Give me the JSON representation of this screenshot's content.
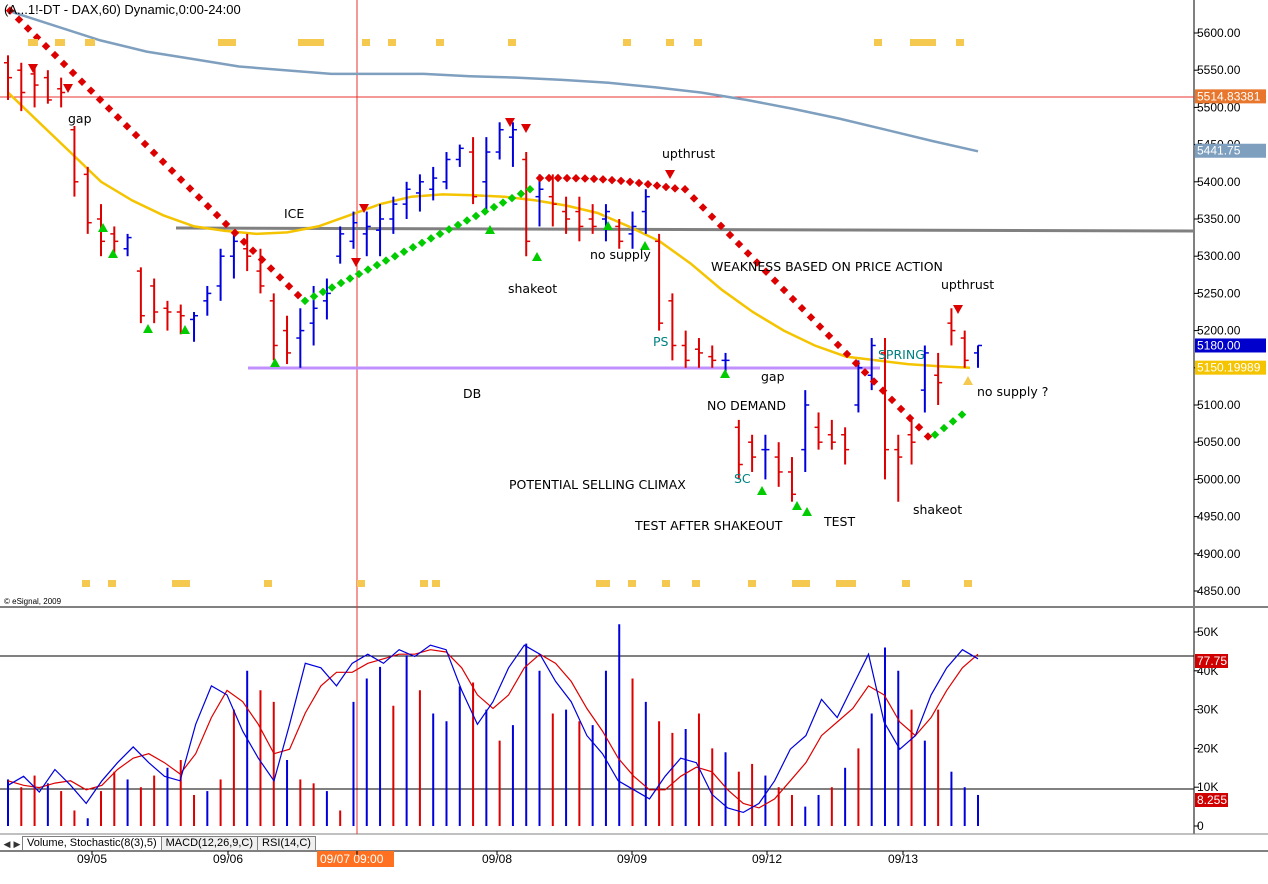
{
  "window": {
    "title": "(A...1!-DT - DAX,60) Dynamic,0:00-24:00",
    "copyright": "© eSignal, 2009"
  },
  "price_axis": {
    "ticks": [
      "5600.00",
      "5550.00",
      "5500.00",
      "5450.00",
      "5400.00",
      "5350.00",
      "5300.00",
      "5250.00",
      "5200.00",
      "5150.00",
      "5100.00",
      "5050.00",
      "5000.00",
      "4950.00",
      "4900.00",
      "4850.00"
    ],
    "badges": [
      {
        "text": "5514.83381",
        "color": "#e8762c"
      },
      {
        "text": "5441.75",
        "color": "#7f9fbf"
      },
      {
        "text": "5180.00",
        "color": "#0000cc"
      },
      {
        "text": "5150.19989",
        "color": "#f5c400"
      }
    ]
  },
  "lower_axis": {
    "ticks": [
      "50K",
      "40K",
      "30K",
      "20K",
      "10K",
      "0"
    ],
    "badges": [
      {
        "text": "77.75",
        "color": "#d00000"
      },
      {
        "text": "8.255",
        "color": "#d00000"
      }
    ]
  },
  "time_axis": {
    "labels": [
      "09/05",
      "09/06",
      "09/07 09:00",
      "09/08",
      "09/09",
      "09/12",
      "09/13"
    ],
    "cursor_color": "#ff7020"
  },
  "tabs": [
    "Volume, Stochastic(8(3),5)",
    "MACD(12,26,9,C)",
    "RSI(14,C)"
  ],
  "annotations": [
    {
      "text": "gap",
      "color": "#000000"
    },
    {
      "text": "ICE",
      "color": "#000000"
    },
    {
      "text": "DB",
      "color": "#000000"
    },
    {
      "text": "shakeot",
      "color": "#000000"
    },
    {
      "text": "upthrust",
      "color": "#000000"
    },
    {
      "text": "no supply",
      "color": "#000000"
    },
    {
      "text": "WEAKNESS BASED ON PRICE ACTION",
      "color": "#000000"
    },
    {
      "text": "PS",
      "color": "#008080"
    },
    {
      "text": "gap",
      "color": "#000000"
    },
    {
      "text": "NO DEMAND",
      "color": "#000000"
    },
    {
      "text": "SPRING",
      "color": "#008080"
    },
    {
      "text": "upthrust",
      "color": "#000000"
    },
    {
      "text": "no supply ?",
      "color": "#000000"
    },
    {
      "text": "SC",
      "color": "#008080"
    },
    {
      "text": "POTENTIAL SELLING CLIMAX",
      "color": "#000000"
    },
    {
      "text": "TEST AFTER SHAKEOUT",
      "color": "#000000"
    },
    {
      "text": "TEST",
      "color": "#000000"
    },
    {
      "text": "shakeot",
      "color": "#000000"
    }
  ],
  "chart_data": {
    "type": "bar",
    "panels": [
      "price",
      "volume-stochastic"
    ],
    "price_ylim": [
      4830,
      5640
    ],
    "volume_ylim": [
      0,
      55000
    ],
    "stochastic_ylim": [
      0,
      100
    ],
    "series_colors": {
      "up_bar": "#0000dd",
      "down_bar": "#dd0000",
      "ma_short": "#f5c400",
      "ma_long": "#7f9fbf",
      "sar_bear": "#dd0000",
      "sar_bull": "#00cc00",
      "support_line": "#c090ff",
      "resistance_line": "#808080",
      "stoch_k": "#0000dd",
      "stoch_d": "#dd0000"
    },
    "horizontal_levels": {
      "ice": 5333,
      "db": 5150,
      "last_price_marker": 5514.83
    },
    "ohlc": [
      [
        5560,
        5570,
        5510,
        5540
      ],
      [
        5550,
        5560,
        5495,
        5520
      ],
      [
        5545,
        5555,
        5500,
        5530
      ],
      [
        5540,
        5550,
        5505,
        5510
      ],
      [
        5525,
        5540,
        5500,
        5520
      ],
      [
        5470,
        5475,
        5380,
        5400
      ],
      [
        5410,
        5420,
        5330,
        5345
      ],
      [
        5350,
        5370,
        5300,
        5320
      ],
      [
        5330,
        5340,
        5300,
        5320
      ],
      [
        5310,
        5330,
        5300,
        5325
      ],
      [
        5280,
        5285,
        5210,
        5220
      ],
      [
        5260,
        5270,
        5210,
        5225
      ],
      [
        5230,
        5240,
        5200,
        5225
      ],
      [
        5225,
        5235,
        5195,
        5220
      ],
      [
        5215,
        5225,
        5185,
        5220
      ],
      [
        5240,
        5260,
        5220,
        5250
      ],
      [
        5260,
        5310,
        5240,
        5300
      ],
      [
        5300,
        5335,
        5270,
        5320
      ],
      [
        5310,
        5330,
        5280,
        5300
      ],
      [
        5280,
        5310,
        5250,
        5260
      ],
      [
        5240,
        5250,
        5160,
        5180
      ],
      [
        5200,
        5220,
        5155,
        5170
      ],
      [
        5190,
        5230,
        5150,
        5200
      ],
      [
        5210,
        5260,
        5180,
        5230
      ],
      [
        5240,
        5270,
        5215,
        5250
      ],
      [
        5300,
        5340,
        5290,
        5330
      ],
      [
        5320,
        5360,
        5310,
        5345
      ],
      [
        5330,
        5360,
        5300,
        5340
      ],
      [
        5335,
        5370,
        5300,
        5350
      ],
      [
        5350,
        5380,
        5330,
        5370
      ],
      [
        5370,
        5400,
        5350,
        5390
      ],
      [
        5385,
        5410,
        5360,
        5400
      ],
      [
        5390,
        5420,
        5375,
        5405
      ],
      [
        5400,
        5440,
        5390,
        5430
      ],
      [
        5430,
        5450,
        5420,
        5445
      ],
      [
        5440,
        5460,
        5370,
        5380
      ],
      [
        5400,
        5460,
        5360,
        5440
      ],
      [
        5440,
        5480,
        5430,
        5470
      ],
      [
        5460,
        5480,
        5420,
        5470
      ],
      [
        5430,
        5440,
        5300,
        5320
      ],
      [
        5380,
        5410,
        5340,
        5390
      ],
      [
        5380,
        5410,
        5340,
        5370
      ],
      [
        5360,
        5380,
        5330,
        5350
      ],
      [
        5360,
        5380,
        5320,
        5340
      ],
      [
        5350,
        5370,
        5330,
        5340
      ],
      [
        5350,
        5370,
        5320,
        5360
      ],
      [
        5340,
        5350,
        5310,
        5320
      ],
      [
        5330,
        5360,
        5310,
        5340
      ],
      [
        5360,
        5390,
        5330,
        5380
      ],
      [
        5320,
        5330,
        5200,
        5210
      ],
      [
        5240,
        5250,
        5160,
        5180
      ],
      [
        5180,
        5200,
        5150,
        5160
      ],
      [
        5175,
        5190,
        5150,
        5170
      ],
      [
        5165,
        5180,
        5150,
        5160
      ],
      [
        5160,
        5170,
        5140,
        5160
      ],
      [
        5070,
        5080,
        5000,
        5020
      ],
      [
        5050,
        5060,
        5010,
        5030
      ],
      [
        5040,
        5060,
        5000,
        5040
      ],
      [
        5030,
        5050,
        4990,
        5010
      ],
      [
        5010,
        5030,
        4970,
        4980
      ],
      [
        5040,
        5120,
        5010,
        5100
      ],
      [
        5070,
        5090,
        5040,
        5050
      ],
      [
        5060,
        5080,
        5040,
        5050
      ],
      [
        5060,
        5070,
        5020,
        5040
      ],
      [
        5100,
        5160,
        5090,
        5150
      ],
      [
        5140,
        5190,
        5120,
        5180
      ],
      [
        5170,
        5190,
        5000,
        5040
      ],
      [
        5040,
        5060,
        4970,
        5030
      ],
      [
        5060,
        5080,
        5020,
        5050
      ],
      [
        5120,
        5180,
        5090,
        5170
      ],
      [
        5140,
        5170,
        5100,
        5130
      ],
      [
        5210,
        5230,
        5180,
        5200
      ],
      [
        5190,
        5200,
        5150,
        5160
      ],
      [
        5170,
        5180,
        5150,
        5180
      ]
    ],
    "ma_short": [
      5520,
      5480,
      5440,
      5400,
      5375,
      5355,
      5340,
      5334,
      5330,
      5332,
      5340,
      5355,
      5370,
      5380,
      5383,
      5382,
      5380,
      5375,
      5368,
      5358,
      5340,
      5320,
      5290,
      5255,
      5225,
      5200,
      5180,
      5165,
      5160,
      5155,
      5152,
      5150
    ],
    "ma_long": [
      5630,
      5610,
      5590,
      5575,
      5565,
      5555,
      5550,
      5545,
      5545,
      5545,
      5542,
      5540,
      5537,
      5533,
      5527,
      5520,
      5510,
      5498,
      5485,
      5470,
      5455,
      5441
    ],
    "volume_bars": [
      12000,
      10000,
      13000,
      11000,
      9000,
      4000,
      2000,
      9000,
      14000,
      12000,
      10000,
      13000,
      15000,
      17000,
      8000,
      9000,
      12000,
      30000,
      40000,
      35000,
      32000,
      17000,
      12000,
      11000,
      9000,
      4000,
      32000,
      38000,
      41000,
      31000,
      44000,
      35000,
      29000,
      27000,
      36000,
      37000,
      30000,
      22000,
      26000,
      47000,
      40000,
      29000,
      30000,
      27000,
      26000,
      40000,
      52000,
      38000,
      32000,
      27000,
      24000,
      25000,
      29000,
      20000,
      19000,
      14000,
      16000,
      13000,
      10000,
      8000,
      5000,
      8000,
      10000,
      15000,
      20000,
      29000,
      46000,
      40000,
      30000,
      22000,
      30000,
      14000,
      10000,
      8000
    ],
    "stoch_k": [
      18,
      22,
      15,
      25,
      18,
      10,
      20,
      28,
      35,
      28,
      22,
      20,
      45,
      62,
      58,
      42,
      30,
      20,
      45,
      72,
      70,
      62,
      72,
      76,
      72,
      78,
      75,
      80,
      78,
      60,
      45,
      55,
      70,
      80,
      76,
      64,
      55,
      40,
      32,
      20,
      16,
      12,
      22,
      30,
      28,
      14,
      8,
      6,
      10,
      20,
      34,
      40,
      56,
      48,
      62,
      76,
      46,
      34,
      40,
      58,
      70,
      78,
      74
    ],
    "stoch_d": [
      20,
      18,
      17,
      19,
      20,
      16,
      18,
      25,
      30,
      32,
      28,
      23,
      32,
      48,
      60,
      55,
      45,
      32,
      34,
      50,
      62,
      68,
      68,
      72,
      74,
      76,
      76,
      78,
      77,
      70,
      58,
      52,
      58,
      70,
      76,
      72,
      64,
      52,
      42,
      30,
      22,
      16,
      16,
      22,
      26,
      24,
      16,
      10,
      8,
      12,
      20,
      28,
      40,
      46,
      52,
      62,
      58,
      46,
      40,
      48,
      60,
      70,
      76
    ]
  }
}
